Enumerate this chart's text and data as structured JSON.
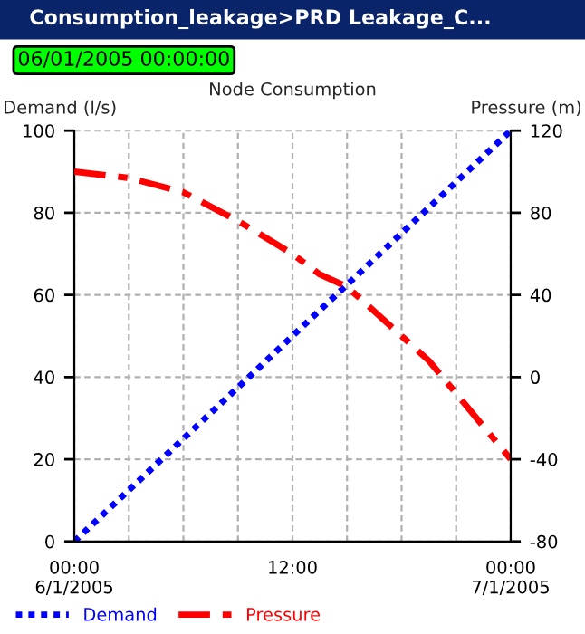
{
  "chart_data": {
    "type": "line",
    "title": "Node Consumption",
    "annotations": [
      "Consumption_leakage>PRD Leakage_C...",
      "06/01/2005 00:00:00"
    ],
    "ylabel": "Demand (l/s)",
    "y2label": "Pressure (m)",
    "x": [
      "2005-01-06T00:00",
      "2005-01-06T03:00",
      "2005-01-06T06:00",
      "2005-01-06T09:00",
      "2005-01-06T12:00",
      "2005-01-06T13:30",
      "2005-01-06T15:00",
      "2005-01-06T16:30",
      "2005-01-06T18:00",
      "2005-01-06T19:30",
      "2005-01-06T21:00",
      "2005-01-06T22:30",
      "2005-01-07T00:00"
    ],
    "series": [
      {
        "name": "Demand",
        "color": "#0000ff",
        "line_style": "dotted",
        "x": [
          "2005-01-06T00:00",
          "2005-01-07T00:00"
        ],
        "values": [
          0,
          100
        ]
      },
      {
        "name": "Pressure",
        "color": "#ff0000",
        "line_style": "dashed",
        "axis": "y2",
        "values": [
          100,
          97,
          90,
          76,
          60,
          50,
          44,
          32,
          20,
          8,
          -8,
          -24,
          -40
        ]
      }
    ],
    "xlim": [
      "2005-01-06T00:00",
      "2005-01-07T00:00"
    ],
    "xticks": [
      {
        "value": "2005-01-06T00:00",
        "label": "00:00\n6/1/2005"
      },
      {
        "value": "2005-01-06T03:00",
        "label": null
      },
      {
        "value": "2005-01-06T06:00",
        "label": null
      },
      {
        "value": "2005-01-06T09:00",
        "label": null
      },
      {
        "value": "2005-01-06T12:00",
        "label": "12:00"
      },
      {
        "value": "2005-01-06T15:00",
        "label": null
      },
      {
        "value": "2005-01-06T18:00",
        "label": null
      },
      {
        "value": "2005-01-06T21:00",
        "label": null
      },
      {
        "value": "2005-01-07T00:00",
        "label": "00:00\n7/1/2005"
      }
    ],
    "ylim": [
      0,
      100
    ],
    "yticks": [
      0,
      20,
      40,
      60,
      80,
      100
    ],
    "y2lim": [
      -80,
      120
    ],
    "y2ticks": [
      -80,
      -40,
      0,
      40,
      80,
      120
    ],
    "grid": true,
    "legend": "bottom",
    "marker": "none"
  }
}
